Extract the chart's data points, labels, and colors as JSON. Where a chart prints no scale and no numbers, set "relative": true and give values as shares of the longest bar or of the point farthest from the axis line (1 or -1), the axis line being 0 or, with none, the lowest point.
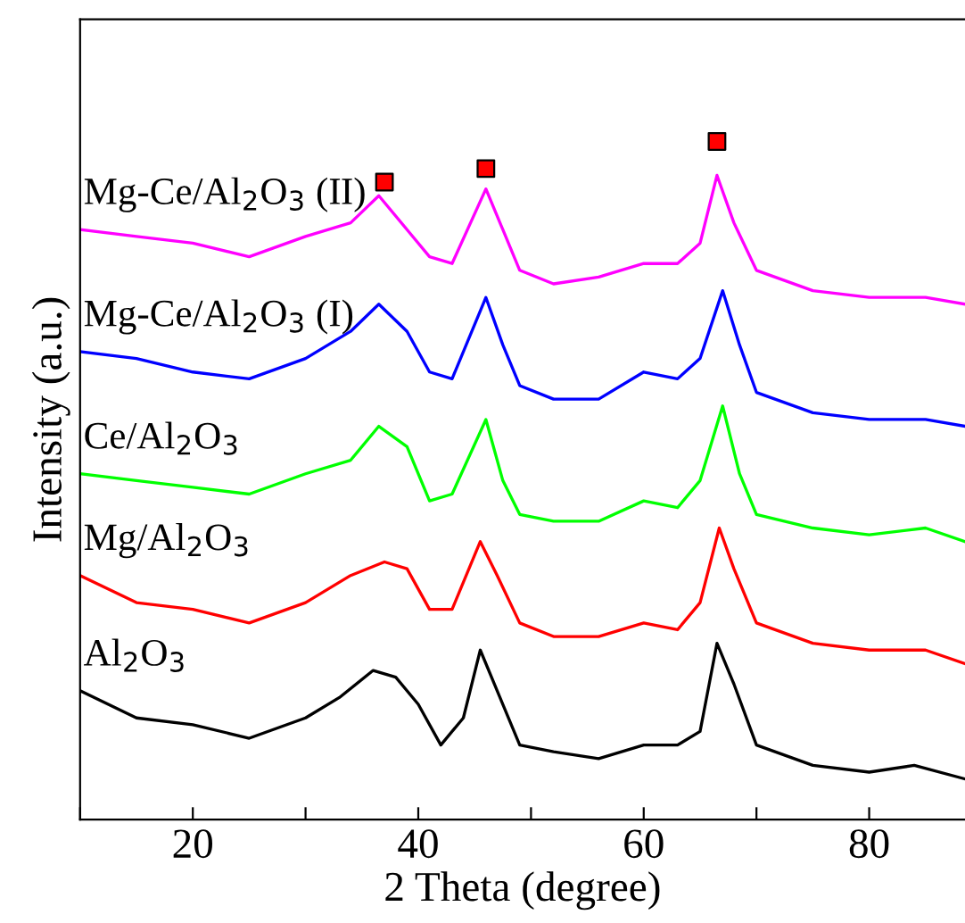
{
  "chart_data": {
    "type": "line",
    "relative": true,
    "xlabel": "2 Theta (degree)",
    "ylabel": "Intensity (a.u.)",
    "xlim": [
      10,
      88.5
    ],
    "xticks": [
      {
        "value": 10,
        "label": null
      },
      20,
      {
        "value": 30,
        "label": null
      },
      40,
      {
        "value": 50,
        "label": null
      },
      60,
      {
        "value": 70,
        "label": null
      },
      80
    ],
    "legend": false,
    "grid": false,
    "marker": "none",
    "line_style": "solid",
    "series": [
      {
        "name": "Al$_{2}$O$_{3}$",
        "color": "#000000",
        "x": [
          10,
          15,
          20,
          25,
          30,
          33,
          36,
          38,
          40,
          42,
          44,
          45.5,
          47,
          49,
          52,
          56,
          60,
          63,
          65,
          66.5,
          68,
          70,
          75,
          80,
          84,
          88.5
        ],
        "values": [
          0.19,
          0.15,
          0.14,
          0.12,
          0.15,
          0.18,
          0.22,
          0.21,
          0.17,
          0.11,
          0.15,
          0.25,
          0.19,
          0.11,
          0.1,
          0.09,
          0.11,
          0.11,
          0.13,
          0.26,
          0.2,
          0.11,
          0.08,
          0.07,
          0.08,
          0.06
        ]
      },
      {
        "name": "Mg/Al$_{2}$O$_{3}$",
        "color": "#ff0000",
        "x": [
          10,
          15,
          20,
          25,
          30,
          34,
          37,
          39,
          41,
          43,
          45.5,
          47,
          49,
          52,
          56,
          60,
          63,
          65,
          66.7,
          68,
          70,
          75,
          80,
          85,
          88.5
        ],
        "values": [
          0.36,
          0.32,
          0.31,
          0.29,
          0.32,
          0.36,
          0.38,
          0.37,
          0.31,
          0.31,
          0.41,
          0.36,
          0.29,
          0.27,
          0.27,
          0.29,
          0.28,
          0.32,
          0.43,
          0.37,
          0.29,
          0.26,
          0.25,
          0.25,
          0.23
        ]
      },
      {
        "name": "Ce/Al$_{2}$O$_{3}$",
        "color": "#00ff00",
        "x": [
          10,
          15,
          20,
          25,
          30,
          34,
          36.5,
          39,
          41,
          43,
          46,
          47.5,
          49,
          52,
          56,
          60,
          63,
          65,
          67,
          68.5,
          70,
          75,
          80,
          85,
          88.5
        ],
        "values": [
          0.51,
          0.5,
          0.49,
          0.48,
          0.51,
          0.53,
          0.58,
          0.55,
          0.47,
          0.48,
          0.59,
          0.5,
          0.45,
          0.44,
          0.44,
          0.47,
          0.46,
          0.5,
          0.61,
          0.51,
          0.45,
          0.43,
          0.42,
          0.43,
          0.41
        ]
      },
      {
        "name": "Mg-Ce/Al$_{2}$O$_{3}$ (I)",
        "color": "#0000ff",
        "x": [
          10,
          15,
          20,
          25,
          30,
          34,
          36.5,
          39,
          41,
          43,
          46,
          47.5,
          49,
          52,
          56,
          60,
          63,
          65,
          67,
          68.5,
          70,
          75,
          80,
          85,
          88.5
        ],
        "values": [
          0.69,
          0.68,
          0.66,
          0.65,
          0.68,
          0.72,
          0.76,
          0.72,
          0.66,
          0.65,
          0.77,
          0.7,
          0.64,
          0.62,
          0.62,
          0.66,
          0.65,
          0.68,
          0.78,
          0.7,
          0.63,
          0.6,
          0.59,
          0.59,
          0.58
        ]
      },
      {
        "name": "Mg-Ce/Al$_{2}$O$_{3}$ (II)",
        "color": "#ff00ff",
        "x": [
          10,
          15,
          20,
          25,
          30,
          34,
          36.5,
          39,
          41,
          43,
          46,
          47.5,
          49,
          52,
          56,
          60,
          63,
          65,
          66.5,
          68,
          70,
          75,
          80,
          85,
          88.5
        ],
        "values": [
          0.87,
          0.86,
          0.85,
          0.83,
          0.86,
          0.88,
          0.92,
          0.87,
          0.83,
          0.82,
          0.93,
          0.87,
          0.81,
          0.79,
          0.8,
          0.82,
          0.82,
          0.85,
          0.95,
          0.88,
          0.81,
          0.78,
          0.77,
          0.77,
          0.76
        ]
      },
      {
        "type": "scatter",
        "marker": "square",
        "color": "#ff0000",
        "x": [
          37,
          46,
          66.5
        ],
        "values": [
          0.94,
          0.96,
          1.0
        ]
      }
    ]
  }
}
